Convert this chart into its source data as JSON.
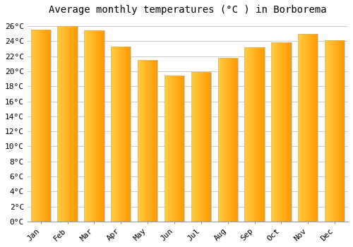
{
  "title": "Average monthly temperatures (°C ) in Borborema",
  "months": [
    "Jan",
    "Feb",
    "Mar",
    "Apr",
    "May",
    "Jun",
    "Jul",
    "Aug",
    "Sep",
    "Oct",
    "Nov",
    "Dec"
  ],
  "values": [
    25.5,
    26.0,
    25.4,
    23.3,
    21.5,
    19.4,
    19.9,
    21.8,
    23.2,
    23.8,
    25.0,
    24.1
  ],
  "bar_color_left": "#FFCC44",
  "bar_color_right": "#FF9900",
  "bar_edge_color": "#BBBBBB",
  "ylim": [
    0,
    27
  ],
  "ytick_step": 2,
  "ytick_max": 26,
  "background_color": "#FFFFFF",
  "grid_color": "#CCCCCC",
  "title_fontsize": 10,
  "tick_fontsize": 8,
  "font_family": "monospace"
}
